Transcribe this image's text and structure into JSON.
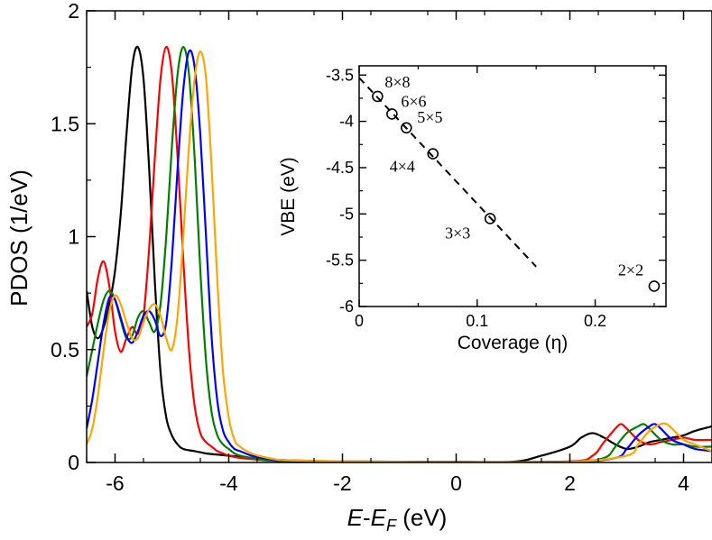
{
  "chart_data": [
    {
      "type": "line",
      "xlabel_main": "E",
      "xlabel_dash": "-",
      "xlabel_E2": "E",
      "xlabel_sub": "F",
      "xlabel_unit": " (eV)",
      "ylabel": "PDOS (1/eV)",
      "xlim": [
        -6.5,
        4.5
      ],
      "ylim": [
        0,
        2
      ],
      "xticks": [
        -6,
        -4,
        -2,
        0,
        2,
        4
      ],
      "yticks": [
        0,
        0.5,
        1,
        1.5,
        2
      ],
      "xtick_labels": [
        "-6",
        "-4",
        "-2",
        "0",
        "2",
        "4"
      ],
      "ytick_labels": [
        "0",
        "0.5",
        "1",
        "1.5",
        "2"
      ],
      "grid": false,
      "series": [
        {
          "color": "#000000",
          "x": [
            -6.5,
            -6.4,
            -6.3,
            -6.2,
            -6.1,
            -6.0,
            -5.9,
            -5.8,
            -5.7,
            -5.6,
            -5.5,
            -5.4,
            -5.3,
            -5.2,
            -5.1,
            -5.0,
            -4.9,
            -4.8,
            -4.6,
            -4.4,
            -4.2,
            -4.0,
            -3.8,
            -3.6,
            -3.4,
            -3.0,
            -2.0,
            0.0,
            1.0,
            1.5,
            2.0,
            2.2,
            2.4,
            2.6,
            2.8,
            3.0,
            3.2,
            3.4,
            3.6,
            3.8,
            4.0,
            4.2,
            4.5
          ],
          "y": [
            0.76,
            0.6,
            0.55,
            0.6,
            0.7,
            0.85,
            1.1,
            1.45,
            1.75,
            1.84,
            1.7,
            1.3,
            0.8,
            0.4,
            0.2,
            0.12,
            0.08,
            0.06,
            0.05,
            0.04,
            0.035,
            0.03,
            0.025,
            0.02,
            0.015,
            0.01,
            0.005,
            0.003,
            0.003,
            0.03,
            0.07,
            0.11,
            0.13,
            0.11,
            0.08,
            0.06,
            0.07,
            0.09,
            0.1,
            0.11,
            0.12,
            0.14,
            0.16
          ]
        },
        {
          "color": "#ff0000",
          "x": [
            -6.5,
            -6.4,
            -6.3,
            -6.2,
            -6.1,
            -6.0,
            -5.9,
            -5.8,
            -5.7,
            -5.6,
            -5.5,
            -5.4,
            -5.3,
            -5.2,
            -5.1,
            -5.0,
            -4.9,
            -4.8,
            -4.7,
            -4.6,
            -4.5,
            -4.4,
            -4.3,
            -4.2,
            -4.1,
            -4.0,
            -3.8,
            -3.6,
            -3.4,
            -3.2,
            -3.0,
            -2.0,
            0.0,
            2.0,
            2.4,
            2.6,
            2.8,
            2.9,
            3.0,
            3.2,
            3.4,
            3.6,
            3.8,
            4.0,
            4.2,
            4.5
          ],
          "y": [
            0.6,
            0.66,
            0.82,
            0.89,
            0.78,
            0.58,
            0.49,
            0.55,
            0.6,
            0.57,
            0.65,
            0.95,
            1.35,
            1.7,
            1.84,
            1.72,
            1.35,
            0.9,
            0.5,
            0.25,
            0.13,
            0.09,
            0.07,
            0.05,
            0.04,
            0.03,
            0.02,
            0.015,
            0.01,
            0.008,
            0.006,
            0.004,
            0.002,
            0.005,
            0.03,
            0.09,
            0.15,
            0.17,
            0.15,
            0.1,
            0.08,
            0.09,
            0.1,
            0.11,
            0.1,
            0.1
          ]
        },
        {
          "color": "#008000",
          "x": [
            -6.5,
            -6.4,
            -6.3,
            -6.2,
            -6.1,
            -6.0,
            -5.9,
            -5.8,
            -5.7,
            -5.6,
            -5.5,
            -5.4,
            -5.3,
            -5.2,
            -5.1,
            -5.0,
            -4.9,
            -4.8,
            -4.7,
            -4.6,
            -4.5,
            -4.4,
            -4.3,
            -4.2,
            -4.1,
            -4.0,
            -3.9,
            -3.8,
            -3.6,
            -3.4,
            -3.2,
            -3.0,
            -2.0,
            0.0,
            2.0,
            2.6,
            2.8,
            3.0,
            3.2,
            3.3,
            3.4,
            3.6,
            3.8,
            4.0,
            4.2,
            4.5
          ],
          "y": [
            0.38,
            0.5,
            0.62,
            0.72,
            0.76,
            0.72,
            0.63,
            0.55,
            0.56,
            0.64,
            0.67,
            0.62,
            0.58,
            0.7,
            1.0,
            1.4,
            1.72,
            1.84,
            1.72,
            1.35,
            0.85,
            0.45,
            0.22,
            0.12,
            0.08,
            0.06,
            0.04,
            0.03,
            0.02,
            0.012,
            0.008,
            0.005,
            0.003,
            0.002,
            0.004,
            0.02,
            0.07,
            0.13,
            0.16,
            0.17,
            0.15,
            0.1,
            0.08,
            0.08,
            0.07,
            0.07
          ]
        },
        {
          "color": "#0000ff",
          "x": [
            -6.5,
            -6.4,
            -6.3,
            -6.2,
            -6.1,
            -6.0,
            -5.9,
            -5.8,
            -5.7,
            -5.6,
            -5.5,
            -5.4,
            -5.3,
            -5.2,
            -5.1,
            -5.0,
            -4.9,
            -4.8,
            -4.7,
            -4.6,
            -4.5,
            -4.4,
            -4.3,
            -4.2,
            -4.1,
            -4.0,
            -3.9,
            -3.8,
            -3.6,
            -3.4,
            -3.2,
            -3.0,
            -2.0,
            0.0,
            2.0,
            2.8,
            3.0,
            3.2,
            3.4,
            3.5,
            3.6,
            3.8,
            4.0,
            4.2,
            4.5
          ],
          "y": [
            0.15,
            0.28,
            0.45,
            0.62,
            0.73,
            0.72,
            0.64,
            0.56,
            0.53,
            0.58,
            0.65,
            0.67,
            0.63,
            0.56,
            0.62,
            0.9,
            1.3,
            1.65,
            1.82,
            1.75,
            1.45,
            1.0,
            0.55,
            0.27,
            0.14,
            0.09,
            0.06,
            0.05,
            0.03,
            0.02,
            0.012,
            0.008,
            0.004,
            0.002,
            0.003,
            0.02,
            0.06,
            0.12,
            0.16,
            0.17,
            0.15,
            0.1,
            0.08,
            0.06,
            0.05
          ]
        },
        {
          "color": "#ffa500",
          "x": [
            -6.5,
            -6.4,
            -6.3,
            -6.2,
            -6.1,
            -6.0,
            -5.9,
            -5.8,
            -5.7,
            -5.6,
            -5.5,
            -5.4,
            -5.3,
            -5.2,
            -5.1,
            -5.0,
            -4.9,
            -4.8,
            -4.7,
            -4.6,
            -4.5,
            -4.4,
            -4.3,
            -4.2,
            -4.1,
            -4.0,
            -3.9,
            -3.8,
            -3.6,
            -3.4,
            -3.2,
            -3.0,
            -2.0,
            0.0,
            2.0,
            3.0,
            3.2,
            3.4,
            3.6,
            3.7,
            3.8,
            4.0,
            4.2,
            4.5
          ],
          "y": [
            0.08,
            0.15,
            0.3,
            0.5,
            0.67,
            0.74,
            0.7,
            0.62,
            0.55,
            0.55,
            0.62,
            0.68,
            0.7,
            0.65,
            0.55,
            0.5,
            0.65,
            1.0,
            1.4,
            1.7,
            1.82,
            1.7,
            1.3,
            0.8,
            0.4,
            0.2,
            0.1,
            0.07,
            0.04,
            0.025,
            0.015,
            0.01,
            0.005,
            0.002,
            0.003,
            0.03,
            0.08,
            0.14,
            0.17,
            0.17,
            0.15,
            0.1,
            0.08,
            0.05
          ]
        }
      ]
    },
    {
      "type": "scatter",
      "xlabel": "Coverage (η)",
      "ylabel": "VBE (eV)",
      "xlim": [
        0,
        0.26
      ],
      "ylim": [
        -6,
        -3.4
      ],
      "xticks": [
        0,
        0.1,
        0.2
      ],
      "yticks": [
        -3.5,
        -4,
        -4.5,
        -5,
        -5.5,
        -6
      ],
      "xtick_labels": [
        "0",
        "0.1",
        "0.2"
      ],
      "ytick_labels": [
        "-3.5",
        "-4",
        "-4.5",
        "-5",
        "-5.5",
        "-6"
      ],
      "grid": false,
      "points": [
        {
          "x": 0.0156,
          "y": -3.73,
          "label": "8×8"
        },
        {
          "x": 0.0278,
          "y": -3.92,
          "label": "6×6"
        },
        {
          "x": 0.04,
          "y": -4.07,
          "label": "5×5"
        },
        {
          "x": 0.0625,
          "y": -4.35,
          "label": "4×4"
        },
        {
          "x": 0.111,
          "y": -5.05,
          "label": "3×3"
        },
        {
          "x": 0.25,
          "y": -5.78,
          "label": "2×2"
        }
      ],
      "fit_line": {
        "x": [
          0,
          0.15
        ],
        "y": [
          -3.53,
          -5.57
        ]
      }
    }
  ]
}
